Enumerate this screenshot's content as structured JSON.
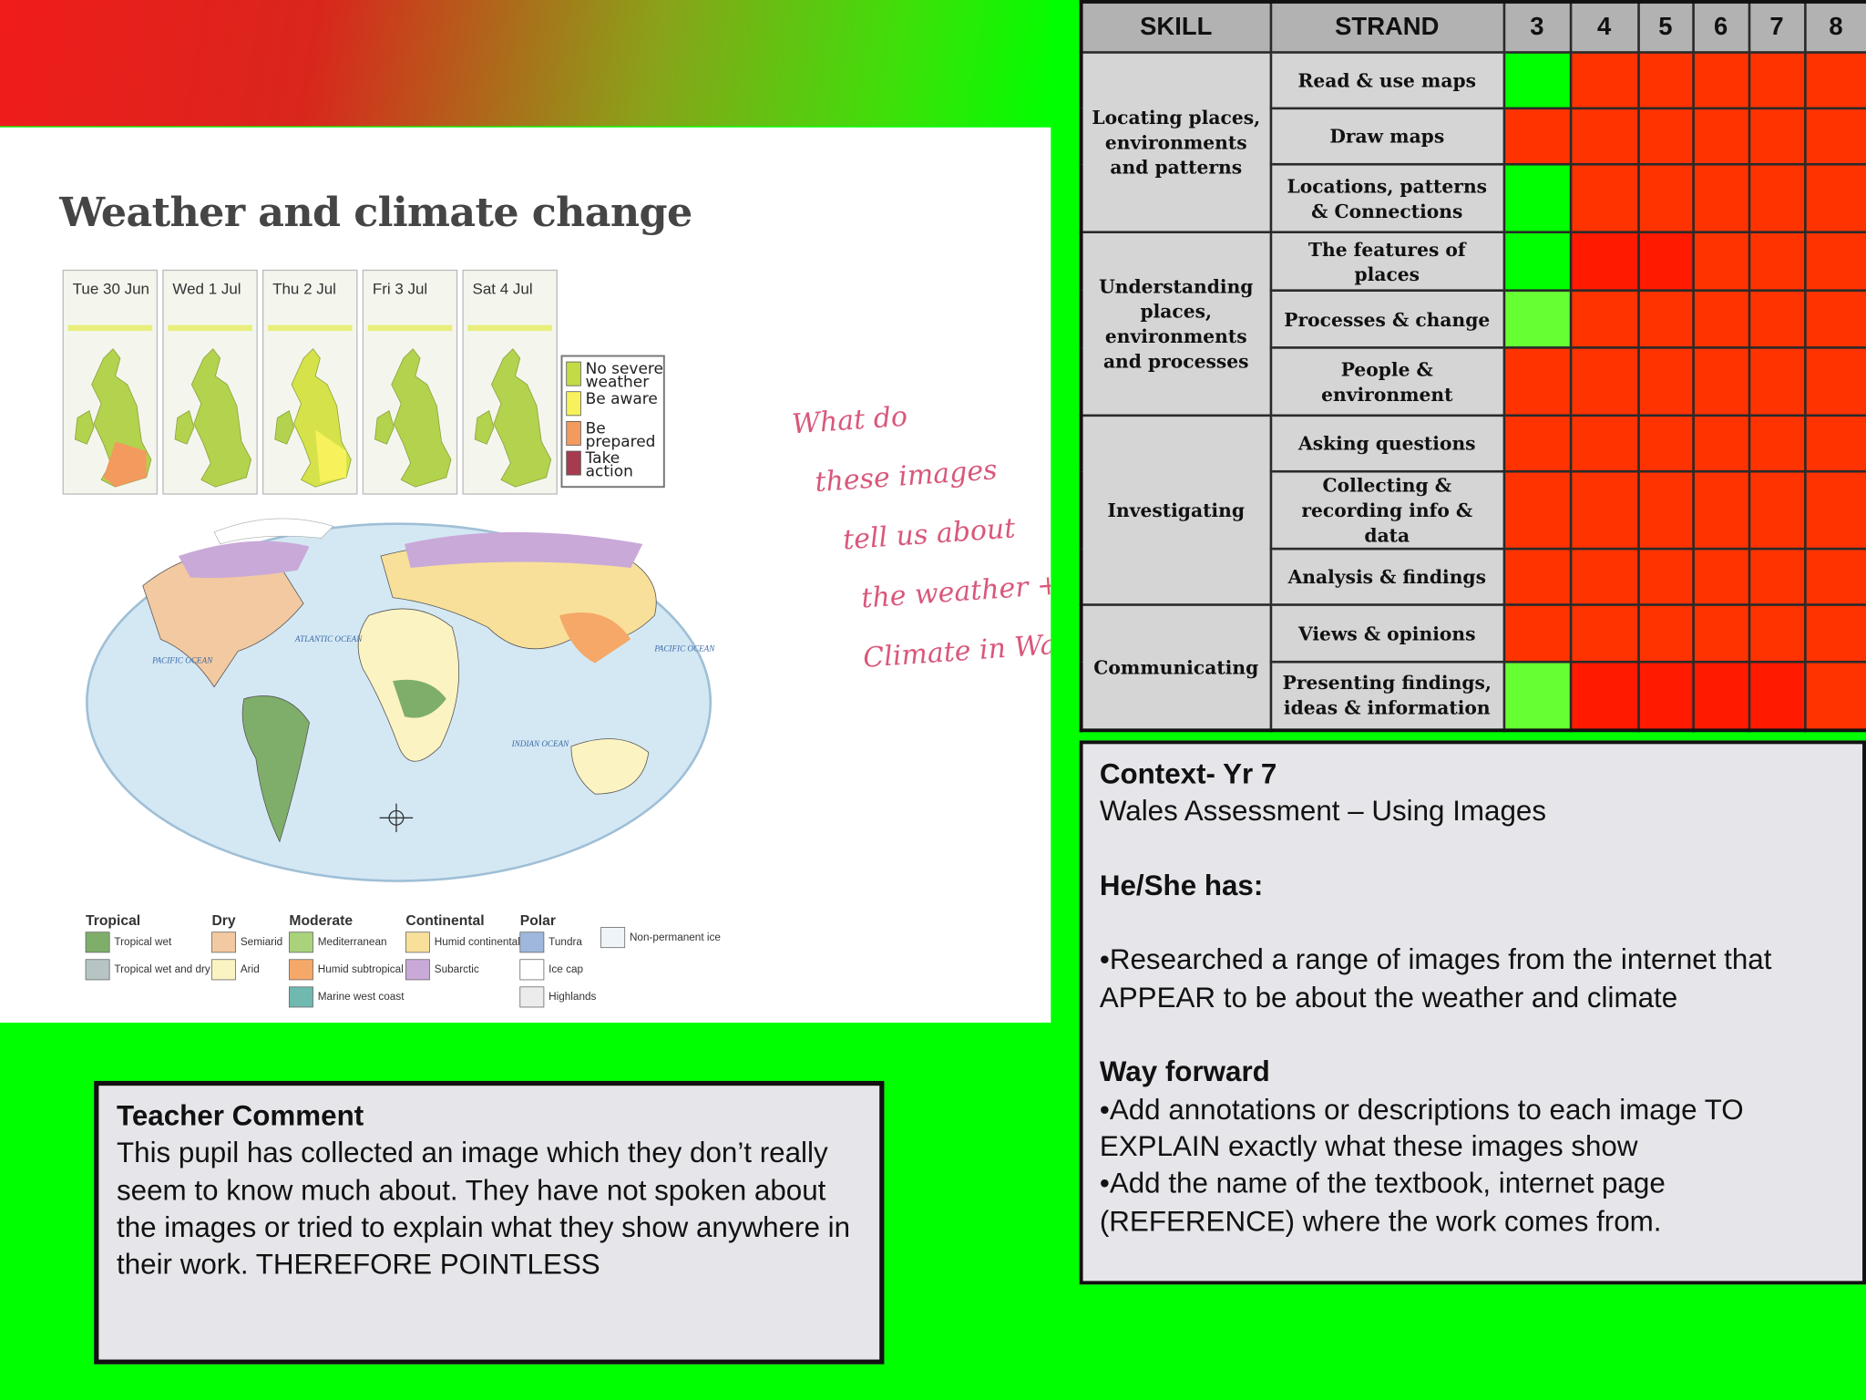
{
  "worksheet": {
    "title": "Weather and climate change",
    "forecast_days": [
      "Tue 30 Jun",
      "Wed 1 Jul",
      "Thu 2 Jul",
      "Fri 3 Jul",
      "Sat 4 Jul"
    ],
    "warning_legend": [
      {
        "label": "No severe weather",
        "color": "#c3dc45"
      },
      {
        "label": "Be aware",
        "color": "#f7f25c"
      },
      {
        "label": "Be prepared",
        "color": "#f39a5e"
      },
      {
        "label": "Take action",
        "color": "#a63b4f"
      }
    ],
    "oceans": [
      "PACIFIC OCEAN",
      "ATLANTIC OCEAN",
      "PACIFIC OCEAN",
      "INDIAN OCEAN"
    ],
    "climate_legend": [
      {
        "group": "Tropical",
        "items": [
          {
            "label": "Tropical wet",
            "color": "#7fae6a"
          },
          {
            "label": "Tropical wet and dry",
            "color": "#b6c4c4"
          }
        ]
      },
      {
        "group": "Dry",
        "items": [
          {
            "label": "Semiarid",
            "color": "#f2c9a0"
          },
          {
            "label": "Arid",
            "color": "#fbf3c2"
          }
        ]
      },
      {
        "group": "Moderate",
        "items": [
          {
            "label": "Mediterranean",
            "color": "#a9d27a"
          },
          {
            "label": "Humid subtropical",
            "color": "#f5a868"
          },
          {
            "label": "Marine west coast",
            "color": "#6fb9b0"
          }
        ]
      },
      {
        "group": "Continental",
        "items": [
          {
            "label": "Humid continental",
            "color": "#f8e09a"
          },
          {
            "label": "Subarctic",
            "color": "#c9a9d8"
          }
        ]
      },
      {
        "group": "Polar",
        "items": [
          {
            "label": "Tundra",
            "color": "#9fb7dc"
          },
          {
            "label": "Ice cap",
            "color": "#ffffff"
          },
          {
            "label": "Highlands",
            "color": "#ececec"
          }
        ]
      }
    ],
    "extra_legend_item": {
      "label": "Non-permanent ice",
      "color": "#eef4f8"
    },
    "handwriting": [
      "What do",
      "these images",
      "tell us about",
      "the weather +",
      "Climate in Wales?"
    ]
  },
  "skills_table": {
    "headers": [
      "SKILL",
      "STRAND",
      3,
      4,
      5,
      6,
      7,
      8
    ],
    "groups": [
      {
        "skill": "Locating places, environments and patterns",
        "rows": [
          {
            "strand": "Read & use maps",
            "levels": [
              "#00ff00",
              "#ff3300",
              "#ff3300",
              "#ff3300",
              "#ff3300",
              "#ff3300"
            ]
          },
          {
            "strand": "Draw maps",
            "levels": [
              "#ff3300",
              "#ff3300",
              "#ff3300",
              "#ff3300",
              "#ff3300",
              "#ff3300"
            ]
          },
          {
            "strand": "Locations, patterns & Connections",
            "levels": [
              "#00ff00",
              "#ff3300",
              "#ff3300",
              "#ff3300",
              "#ff3300",
              "#ff3300"
            ]
          }
        ]
      },
      {
        "skill": "Understanding places, environments and processes",
        "rows": [
          {
            "strand": "The features of places",
            "levels": [
              "#00ff00",
              "#ff1a00",
              "#ff1a00",
              "#ff3300",
              "#ff3300",
              "#ff3300"
            ]
          },
          {
            "strand": "Processes & change",
            "levels": [
              "#66ff33",
              "#ff3300",
              "#ff3300",
              "#ff3300",
              "#ff3300",
              "#ff3300"
            ]
          },
          {
            "strand": "People & environment",
            "levels": [
              "#ff3300",
              "#ff3300",
              "#ff3300",
              "#ff3300",
              "#ff3300",
              "#ff3300"
            ]
          }
        ]
      },
      {
        "skill": "Investigating",
        "rows": [
          {
            "strand": "Asking questions",
            "levels": [
              "#ff3300",
              "#ff3300",
              "#ff3300",
              "#ff3300",
              "#ff3300",
              "#ff3300"
            ]
          },
          {
            "strand": "Collecting & recording info & data",
            "levels": [
              "#ff3300",
              "#ff3300",
              "#ff3300",
              "#ff3300",
              "#ff3300",
              "#ff3300"
            ]
          },
          {
            "strand": "Analysis & findings",
            "levels": [
              "#ff3300",
              "#ff3300",
              "#ff3300",
              "#ff3300",
              "#ff3300",
              "#ff3300"
            ]
          }
        ]
      },
      {
        "skill": "Communicating",
        "rows": [
          {
            "strand": "Views & opinions",
            "levels": [
              "#ff3300",
              "#ff3300",
              "#ff3300",
              "#ff3300",
              "#ff3300",
              "#ff3300"
            ]
          },
          {
            "strand": "Presenting findings, ideas & information",
            "levels": [
              "#66ff33",
              "#ff1a00",
              "#ff1a00",
              "#ff1a00",
              "#ff1a00",
              "#ff3300"
            ]
          }
        ]
      }
    ]
  },
  "context": {
    "title": "Context- Yr 7",
    "subtitle": "Wales Assessment – Using Images",
    "has_heading": "He/She has:",
    "has_items": [
      "•Researched a range of images from the internet that APPEAR to be about the weather and climate"
    ],
    "forward_heading": "Way forward",
    "forward_items": [
      "•Add annotations or descriptions to each image TO EXPLAIN exactly what these images show",
      "•Add the name of the textbook, internet page (REFERENCE) where the work comes from."
    ]
  },
  "teacher_comment": {
    "title": "Teacher Comment",
    "body": "This pupil has collected an image which they don’t really seem to know much about. They have not spoken about the images or tried to explain what they show anywhere in their work. THEREFORE POINTLESS"
  }
}
